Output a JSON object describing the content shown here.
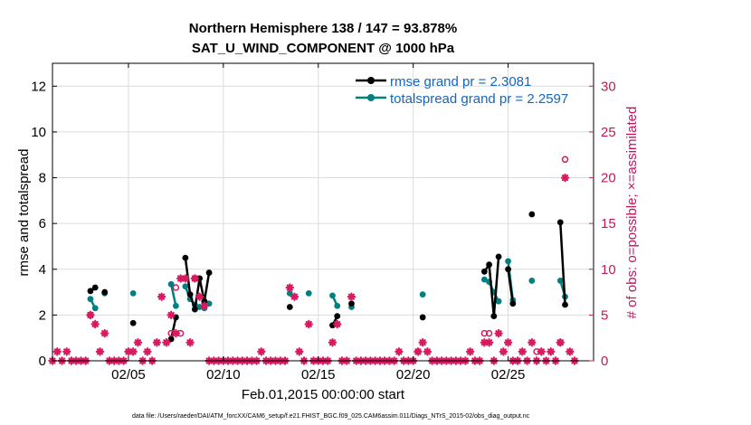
{
  "chart_data": {
    "type": "line",
    "title": "Northern Hemisphere 138 / 147 = 93.878%",
    "subtitle": "SAT_U_WIND_COMPONENT @ 1000 hPa",
    "xlabel": "Feb.01,2015 00:00:00 start",
    "ylabel_left": "rmse and totalspread",
    "ylabel_right": "# of obs: o=possible; ×=assimilated",
    "footnote": "data file: /Users/raeder/DAI/ATM_forcXX/CAM6_setup/f.e21.FHIST_BGC.f09_025.CAM6assim.011/Diags_NTrS_2015-02/obs_diag_output.nc",
    "xlim": [
      0,
      28.5
    ],
    "ylim_left": [
      0,
      13
    ],
    "ylim_right": [
      0,
      32.5
    ],
    "x_ticks": [
      4,
      9,
      14,
      19,
      24
    ],
    "x_tick_labels": [
      "02/05",
      "02/10",
      "02/15",
      "02/20",
      "02/25"
    ],
    "y_ticks_left": [
      0,
      2,
      4,
      6,
      8,
      10,
      12
    ],
    "y_tick_labels_left": [
      "0",
      "2",
      "4",
      "6",
      "8",
      "10",
      "12"
    ],
    "y_ticks_right": [
      0,
      5,
      10,
      15,
      20,
      25,
      30
    ],
    "y_tick_labels_right": [
      "0",
      "5",
      "10",
      "15",
      "20",
      "25",
      "30"
    ],
    "grid": true,
    "legend_position": "top-right",
    "colors": {
      "rmse": "#000000",
      "totalspread": "#008080",
      "obs": "#d81b60",
      "legend_text": "#1565c0",
      "grid": "#dcdcdc"
    },
    "series": [
      {
        "name": "rmse",
        "legend": "rmse grand pr = 2.3081",
        "segments": [
          [
            [
              2.0,
              3.05
            ],
            [
              2.25,
              3.2
            ]
          ],
          [
            [
              2.75,
              3.0
            ]
          ],
          [
            [
              4.25,
              1.65
            ]
          ],
          [
            [
              6.25,
              0.95
            ],
            [
              6.5,
              1.9
            ]
          ],
          [
            [
              7.0,
              4.5
            ],
            [
              7.25,
              2.9
            ],
            [
              7.5,
              2.25
            ],
            [
              7.75,
              3.6
            ],
            [
              8.0,
              2.6
            ],
            [
              8.25,
              3.85
            ]
          ],
          [
            [
              12.5,
              2.35
            ]
          ],
          [
            [
              14.75,
              1.55
            ],
            [
              15.0,
              1.95
            ]
          ],
          [
            [
              15.75,
              2.5
            ]
          ],
          [
            [
              19.5,
              1.9
            ]
          ],
          [
            [
              22.75,
              3.9
            ],
            [
              23.0,
              4.2
            ],
            [
              23.25,
              1.95
            ],
            [
              23.5,
              4.55
            ]
          ],
          [
            [
              24.0,
              4.0
            ],
            [
              24.25,
              2.5
            ]
          ],
          [
            [
              25.25,
              6.4
            ]
          ],
          [
            [
              26.75,
              6.05
            ],
            [
              27.0,
              2.45
            ]
          ]
        ]
      },
      {
        "name": "totalspread",
        "legend": "totalspread grand pr = 2.2597",
        "segments": [
          [
            [
              2.0,
              2.7
            ],
            [
              2.25,
              2.3
            ]
          ],
          [
            [
              2.75,
              2.95
            ]
          ],
          [
            [
              4.25,
              2.95
            ]
          ],
          [
            [
              6.25,
              3.35
            ],
            [
              6.5,
              2.4
            ]
          ],
          [
            [
              7.0,
              3.25
            ],
            [
              7.25,
              2.7
            ],
            [
              7.5,
              2.45
            ],
            [
              7.75,
              2.35
            ],
            [
              8.0,
              2.3
            ],
            [
              8.25,
              2.5
            ]
          ],
          [
            [
              12.5,
              2.95
            ]
          ],
          [
            [
              13.5,
              2.95
            ]
          ],
          [
            [
              14.75,
              2.85
            ],
            [
              15.0,
              2.4
            ]
          ],
          [
            [
              15.75,
              2.35
            ]
          ],
          [
            [
              19.5,
              2.9
            ]
          ],
          [
            [
              22.75,
              3.55
            ],
            [
              23.0,
              3.45
            ],
            [
              23.25,
              3.0
            ],
            [
              23.5,
              2.6
            ]
          ],
          [
            [
              24.0,
              4.35
            ],
            [
              24.25,
              2.65
            ]
          ],
          [
            [
              25.25,
              3.5
            ]
          ],
          [
            [
              26.75,
              3.5
            ],
            [
              27.0,
              2.8
            ]
          ]
        ]
      }
    ],
    "obs_assimilated": [
      [
        0,
        0
      ],
      [
        0.25,
        1
      ],
      [
        0.5,
        0
      ],
      [
        0.75,
        1
      ],
      [
        1.0,
        0
      ],
      [
        1.25,
        0
      ],
      [
        1.5,
        0
      ],
      [
        1.75,
        0
      ],
      [
        2.0,
        5
      ],
      [
        2.25,
        4
      ],
      [
        2.5,
        1
      ],
      [
        2.75,
        3
      ],
      [
        3.0,
        0
      ],
      [
        3.25,
        0
      ],
      [
        3.5,
        0
      ],
      [
        3.75,
        0
      ],
      [
        4.0,
        1
      ],
      [
        4.25,
        1
      ],
      [
        4.5,
        2
      ],
      [
        4.75,
        0
      ],
      [
        5.0,
        1
      ],
      [
        5.25,
        0
      ],
      [
        5.5,
        2
      ],
      [
        5.75,
        7
      ],
      [
        6.0,
        2
      ],
      [
        6.25,
        5
      ],
      [
        6.5,
        3
      ],
      [
        6.75,
        9
      ],
      [
        7.0,
        9
      ],
      [
        7.25,
        2
      ],
      [
        7.5,
        9
      ],
      [
        7.75,
        7
      ],
      [
        8.0,
        6
      ],
      [
        8.25,
        0
      ],
      [
        8.5,
        0
      ],
      [
        8.75,
        0
      ],
      [
        9.0,
        0
      ],
      [
        9.25,
        0
      ],
      [
        9.5,
        0
      ],
      [
        9.75,
        0
      ],
      [
        10.0,
        0
      ],
      [
        10.25,
        0
      ],
      [
        10.5,
        0
      ],
      [
        10.75,
        0
      ],
      [
        11.0,
        1
      ],
      [
        11.25,
        0
      ],
      [
        11.5,
        0
      ],
      [
        11.75,
        0
      ],
      [
        12.0,
        0
      ],
      [
        12.25,
        0
      ],
      [
        12.5,
        8
      ],
      [
        12.75,
        7
      ],
      [
        13.0,
        1
      ],
      [
        13.25,
        0
      ],
      [
        13.5,
        4
      ],
      [
        13.75,
        0
      ],
      [
        14.0,
        0
      ],
      [
        14.25,
        0
      ],
      [
        14.5,
        0
      ],
      [
        14.75,
        2
      ],
      [
        15.0,
        4
      ],
      [
        15.25,
        0
      ],
      [
        15.5,
        0
      ],
      [
        15.75,
        7
      ],
      [
        16.0,
        0
      ],
      [
        16.25,
        0
      ],
      [
        16.5,
        0
      ],
      [
        16.75,
        0
      ],
      [
        17.0,
        0
      ],
      [
        17.25,
        0
      ],
      [
        17.5,
        0
      ],
      [
        17.75,
        0
      ],
      [
        18.0,
        0
      ],
      [
        18.25,
        1
      ],
      [
        18.5,
        0
      ],
      [
        18.75,
        0
      ],
      [
        19.0,
        0
      ],
      [
        19.25,
        1
      ],
      [
        19.5,
        2
      ],
      [
        19.75,
        1
      ],
      [
        20.0,
        0
      ],
      [
        20.25,
        0
      ],
      [
        20.5,
        0
      ],
      [
        20.75,
        0
      ],
      [
        21.0,
        0
      ],
      [
        21.25,
        0
      ],
      [
        21.5,
        0
      ],
      [
        21.75,
        0
      ],
      [
        22.0,
        1
      ],
      [
        22.25,
        0
      ],
      [
        22.5,
        0
      ],
      [
        22.75,
        2
      ],
      [
        23.0,
        2
      ],
      [
        23.25,
        0
      ],
      [
        23.5,
        3
      ],
      [
        23.75,
        1
      ],
      [
        24.0,
        2
      ],
      [
        24.25,
        0
      ],
      [
        24.5,
        0
      ],
      [
        24.75,
        1
      ],
      [
        25.0,
        0
      ],
      [
        25.25,
        2
      ],
      [
        25.5,
        0
      ],
      [
        25.75,
        1
      ],
      [
        26.0,
        0
      ],
      [
        26.25,
        1
      ],
      [
        26.5,
        0
      ],
      [
        26.75,
        2
      ],
      [
        27.0,
        20
      ],
      [
        27.25,
        1
      ],
      [
        27.5,
        0
      ]
    ],
    "obs_possible": [
      [
        2.0,
        5
      ],
      [
        6.25,
        3
      ],
      [
        6.5,
        8
      ],
      [
        6.75,
        3
      ],
      [
        7.5,
        9
      ],
      [
        19.25,
        1
      ],
      [
        22.75,
        3
      ],
      [
        23.0,
        3
      ],
      [
        25.5,
        1
      ],
      [
        26.75,
        2
      ],
      [
        27.0,
        22
      ]
    ]
  }
}
